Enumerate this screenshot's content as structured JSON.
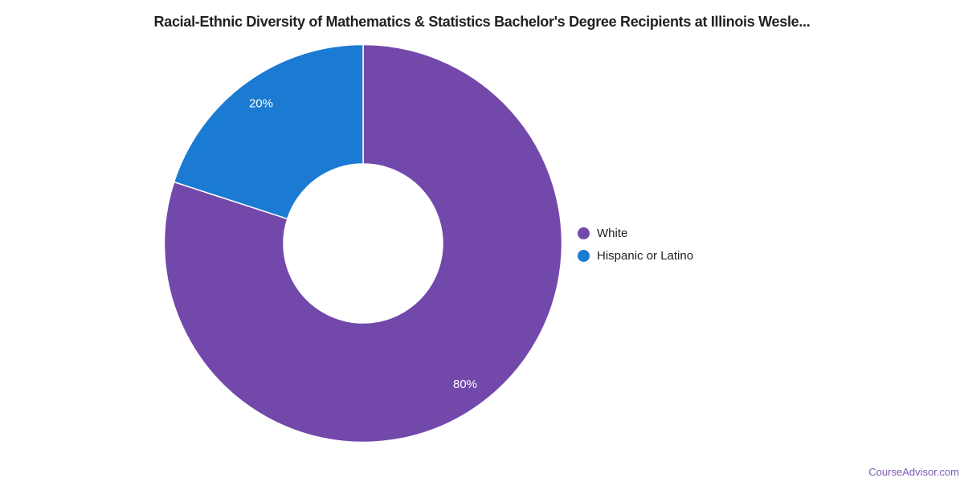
{
  "title": "Racial-Ethnic Diversity of Mathematics & Statistics Bachelor's Degree Recipients at Illinois Wesle...",
  "watermark": "CourseAdvisor.com",
  "colors": {
    "background": "#ffffff",
    "title_text": "#212121",
    "legend_text": "#212121",
    "watermark_text": "#7a5cb5",
    "slice_label_text": "#ffffff"
  },
  "legend": {
    "position": "right",
    "items": [
      {
        "label": "White",
        "color": "#7348ab"
      },
      {
        "label": "Hispanic or Latino",
        "color": "#1b7ad2"
      }
    ]
  },
  "chart_data": {
    "type": "pie",
    "subtype": "donut",
    "title": "Racial-Ethnic Diversity of Mathematics & Statistics Bachelor's Degree Recipients at Illinois Wesle...",
    "labels": [
      "White",
      "Hispanic or Latino"
    ],
    "values": [
      80,
      20
    ],
    "slice_labels": [
      "80%",
      "20%"
    ],
    "colors": [
      "#7348ab",
      "#1b7ad2"
    ],
    "unit": "percent",
    "start_angle_deg": -90,
    "direction": "clockwise",
    "inner_radius_ratio": 0.4,
    "legend_position": "right",
    "grid": false
  }
}
